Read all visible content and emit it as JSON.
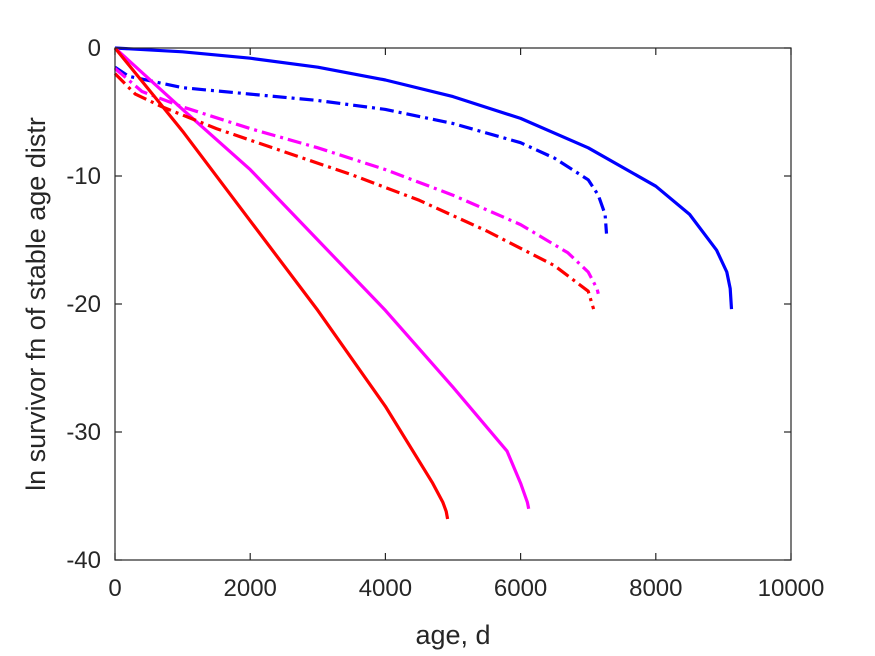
{
  "chart_data": {
    "type": "line",
    "xlabel": "age, d",
    "ylabel": "ln survivor fn of stable age distr",
    "xlim": [
      0,
      10000
    ],
    "ylim": [
      -40,
      0
    ],
    "xticks": [
      0,
      2000,
      4000,
      6000,
      8000,
      10000
    ],
    "yticks": [
      0,
      -10,
      -20,
      -30,
      -40
    ],
    "grid": false,
    "legend": "none",
    "series": [
      {
        "color": "#0000ff",
        "style": "solid",
        "points": [
          [
            0,
            0
          ],
          [
            1000,
            -0.3
          ],
          [
            2000,
            -0.8
          ],
          [
            3000,
            -1.5
          ],
          [
            4000,
            -2.5
          ],
          [
            5000,
            -3.8
          ],
          [
            6000,
            -5.5
          ],
          [
            7000,
            -7.8
          ],
          [
            8000,
            -10.8
          ],
          [
            8500,
            -13.0
          ],
          [
            8900,
            -15.8
          ],
          [
            9050,
            -17.5
          ],
          [
            9100,
            -18.8
          ],
          [
            9120,
            -20.4
          ]
        ]
      },
      {
        "color": "#0000ff",
        "style": "dashdot",
        "points": [
          [
            0,
            -1.5
          ],
          [
            200,
            -2.2
          ],
          [
            1000,
            -3.1
          ],
          [
            2000,
            -3.6
          ],
          [
            3000,
            -4.1
          ],
          [
            4000,
            -4.8
          ],
          [
            5000,
            -5.9
          ],
          [
            6000,
            -7.4
          ],
          [
            6500,
            -8.6
          ],
          [
            7000,
            -10.3
          ],
          [
            7150,
            -11.5
          ],
          [
            7250,
            -13.0
          ],
          [
            7270,
            -14.5
          ]
        ]
      },
      {
        "color": "#ff00ff",
        "style": "solid",
        "points": [
          [
            0,
            0
          ],
          [
            1000,
            -4.8
          ],
          [
            2000,
            -9.5
          ],
          [
            3000,
            -15.0
          ],
          [
            4000,
            -20.5
          ],
          [
            5000,
            -26.5
          ],
          [
            5800,
            -31.5
          ],
          [
            6000,
            -34.0
          ],
          [
            6100,
            -35.5
          ],
          [
            6120,
            -36.0
          ]
        ]
      },
      {
        "color": "#ff00ff",
        "style": "dashdot",
        "points": [
          [
            0,
            -1.6
          ],
          [
            400,
            -3.4
          ],
          [
            1000,
            -4.6
          ],
          [
            2000,
            -6.3
          ],
          [
            3000,
            -7.8
          ],
          [
            4000,
            -9.5
          ],
          [
            5000,
            -11.5
          ],
          [
            6000,
            -13.8
          ],
          [
            6700,
            -16.0
          ],
          [
            7000,
            -17.5
          ],
          [
            7130,
            -18.8
          ],
          [
            7150,
            -19.2
          ]
        ]
      },
      {
        "color": "#ff0000",
        "style": "solid",
        "points": [
          [
            0,
            0
          ],
          [
            1000,
            -6.5
          ],
          [
            2000,
            -13.5
          ],
          [
            3000,
            -20.5
          ],
          [
            4000,
            -28.0
          ],
          [
            4700,
            -34.0
          ],
          [
            4850,
            -35.5
          ],
          [
            4900,
            -36.2
          ],
          [
            4920,
            -36.8
          ]
        ]
      },
      {
        "color": "#ff0000",
        "style": "dashdot",
        "points": [
          [
            0,
            -2.0
          ],
          [
            300,
            -3.6
          ],
          [
            700,
            -4.6
          ],
          [
            1500,
            -6.3
          ],
          [
            2500,
            -8.1
          ],
          [
            3500,
            -9.9
          ],
          [
            4500,
            -11.9
          ],
          [
            5500,
            -14.3
          ],
          [
            6500,
            -17.0
          ],
          [
            7000,
            -19.0
          ],
          [
            7080,
            -20.4
          ]
        ]
      }
    ]
  }
}
